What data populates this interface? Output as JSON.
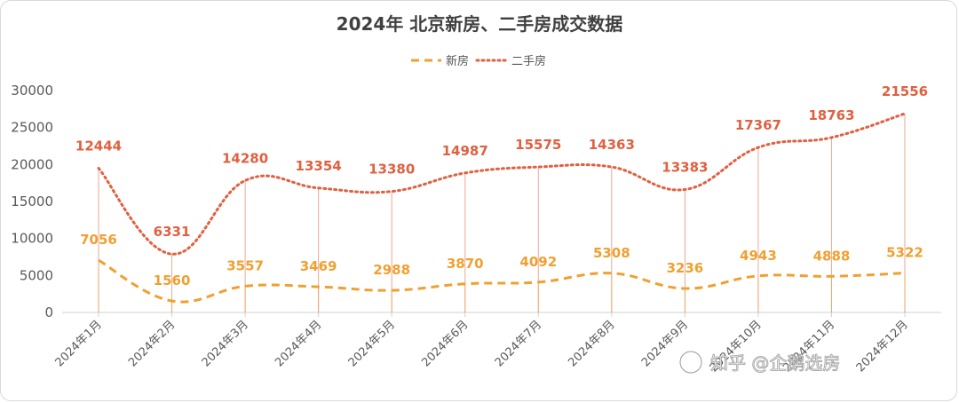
{
  "chart_data": {
    "type": "line",
    "title": "2024年 北京新房、二手房成交数据",
    "categories": [
      "2024年1月",
      "2024年2月",
      "2024年3月",
      "2024年4月",
      "2024年5月",
      "2024年6月",
      "2024年7月",
      "2024年8月",
      "2024年9月",
      "2024年10月",
      "2024年11月",
      "2024年12月"
    ],
    "series": [
      {
        "name": "新房",
        "values": [
          7056,
          1560,
          3557,
          3469,
          2988,
          3870,
          4092,
          5308,
          3236,
          4943,
          4888,
          5322
        ],
        "color": "#f0a030",
        "style": "dashed",
        "labels": [
          "7056",
          "1560",
          "3557",
          "3469",
          "2988",
          "3870",
          "4092",
          "5308",
          "3236",
          "4943",
          "4888",
          "5322"
        ]
      },
      {
        "name": "二手房",
        "values": [
          19500,
          7891,
          17837,
          16823,
          16368,
          18857,
          19667,
          19671,
          16619,
          22310,
          23651,
          26878
        ],
        "color": "#e06040",
        "style": "dotted",
        "labels": [
          "12444",
          "6331",
          "14280",
          "13354",
          "13380",
          "14987",
          "15575",
          "14363",
          "13383",
          "17367",
          "18763",
          "21556"
        ]
      }
    ],
    "ylim": [
      0,
      30000
    ],
    "yticks": [
      "0",
      "5000",
      "10000",
      "15000",
      "20000",
      "25000",
      "30000"
    ],
    "legend_position": "top",
    "grid": false,
    "stacked_label_note": "二手房 line is drawn stacked above 新房"
  },
  "watermark": {
    "text": "知乎 @企鹅选房"
  }
}
